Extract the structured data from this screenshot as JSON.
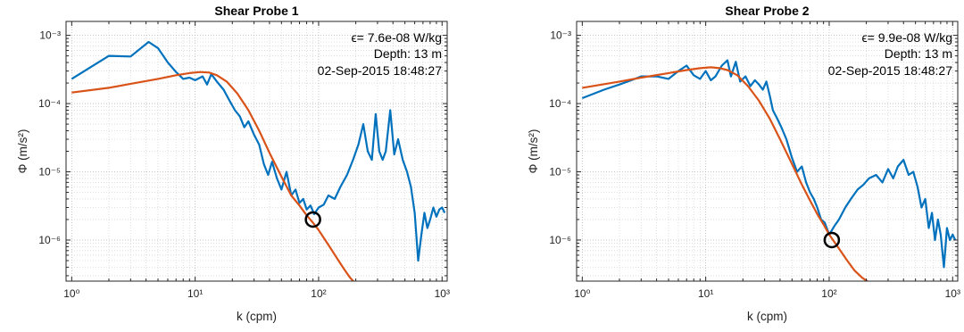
{
  "chart_data": [
    {
      "type": "line",
      "title": "Shear Probe 1",
      "xlabel": "k (cpm)",
      "ylabel": "Φ (m/s²)",
      "xscale": "log",
      "yscale": "log",
      "xlim": [
        0.9,
        1100
      ],
      "ylim": [
        2.5e-07,
        0.0016
      ],
      "grid": "on (major and minor, dotted)",
      "xticks": [
        "10⁰",
        "10¹",
        "10²",
        "10³"
      ],
      "yticks": [
        "10⁻⁶",
        "10⁻⁵",
        "10⁻⁴",
        "10⁻³"
      ],
      "annotations": [
        "ϵ= 7.6e-08 W/kg",
        "Depth: 13 m",
        "02-Sep-2015 18:48:27"
      ],
      "cutoff_marker": {
        "x": 90,
        "y": 2e-06
      },
      "series": [
        {
          "color": "#0072BD",
          "points": [
            [
              1.0,
              0.00023
            ],
            [
              2.0,
              0.0005
            ],
            [
              3.0,
              0.00049
            ],
            [
              4.2,
              0.0008
            ],
            [
              5.0,
              0.00065
            ],
            [
              6.0,
              0.0004
            ],
            [
              7.0,
              0.00029
            ],
            [
              8.0,
              0.00023
            ],
            [
              9.0,
              0.00024
            ],
            [
              10.0,
              0.00022
            ],
            [
              11.5,
              0.00025
            ],
            [
              12.5,
              0.00019
            ],
            [
              13.5,
              0.00027
            ],
            [
              15.0,
              0.00021
            ],
            [
              17.0,
              0.00016
            ],
            [
              19.0,
              0.00011
            ],
            [
              21.0,
              8e-05
            ],
            [
              23.0,
              6.5e-05
            ],
            [
              25.0,
              4.5e-05
            ],
            [
              27.0,
              5.5e-05
            ],
            [
              30.0,
              3.5e-05
            ],
            [
              33.0,
              2.5e-05
            ],
            [
              36.0,
              1.3e-05
            ],
            [
              39.0,
              9e-06
            ],
            [
              42.0,
              1.4e-05
            ],
            [
              46.0,
              8e-06
            ],
            [
              50.0,
              5.5e-06
            ],
            [
              55.0,
              1e-05
            ],
            [
              60.0,
              4.5e-06
            ],
            [
              65.0,
              5.5e-06
            ],
            [
              70.0,
              3.5e-06
            ],
            [
              75.0,
              4e-06
            ],
            [
              80.0,
              2.8e-06
            ],
            [
              86.0,
              3.2e-06
            ],
            [
              92.0,
              2.4e-06
            ],
            [
              100.0,
              3e-06
            ],
            [
              110.0,
              3.3e-06
            ],
            [
              120.0,
              4.5e-06
            ],
            [
              135.0,
              4e-06
            ],
            [
              150.0,
              6e-06
            ],
            [
              170.0,
              9e-06
            ],
            [
              190.0,
              1.5e-05
            ],
            [
              210.0,
              2.5e-05
            ],
            [
              230.0,
              5e-05
            ],
            [
              250.0,
              2e-05
            ],
            [
              270.0,
              1.5e-05
            ],
            [
              290.0,
              7e-05
            ],
            [
              310.0,
              2e-05
            ],
            [
              330.0,
              1.5e-05
            ],
            [
              350.0,
              2e-05
            ],
            [
              380.0,
              8e-05
            ],
            [
              410.0,
              1.8e-05
            ],
            [
              440.0,
              3e-05
            ],
            [
              480.0,
              1.5e-05
            ],
            [
              520.0,
              1e-05
            ],
            [
              560.0,
              6e-06
            ],
            [
              600.0,
              2.5e-06
            ],
            [
              640.0,
              5e-07
            ],
            [
              680.0,
              1.2e-06
            ],
            [
              720.0,
              2.5e-06
            ],
            [
              760.0,
              1.5e-06
            ],
            [
              800.0,
              2e-06
            ],
            [
              850.0,
              3e-06
            ],
            [
              900.0,
              2.2e-06
            ],
            [
              950.0,
              2.8e-06
            ],
            [
              1000.0,
              3e-06
            ],
            [
              1050.0,
              2.5e-06
            ]
          ]
        },
        {
          "color": "#D95319",
          "points": [
            [
              1.0,
              0.000145
            ],
            [
              2.0,
              0.00017
            ],
            [
              3.0,
              0.000195
            ],
            [
              5.0,
              0.00023
            ],
            [
              7.0,
              0.00026
            ],
            [
              9.0,
              0.00028
            ],
            [
              11.0,
              0.00029
            ],
            [
              13.0,
              0.000285
            ],
            [
              15.0,
              0.00026
            ],
            [
              18.0,
              0.00021
            ],
            [
              22.0,
              0.00014
            ],
            [
              27.0,
              8e-05
            ],
            [
              33.0,
              4e-05
            ],
            [
              40.0,
              1.9e-05
            ],
            [
              50.0,
              8.5e-06
            ],
            [
              60.0,
              4.5e-06
            ],
            [
              70.0,
              3.2e-06
            ],
            [
              80.0,
              2.3e-06
            ],
            [
              90.0,
              1.8e-06
            ],
            [
              100.0,
              1.4e-06
            ],
            [
              120.0,
              8.5e-07
            ],
            [
              140.0,
              5.5e-07
            ],
            [
              160.0,
              3.8e-07
            ],
            [
              180.0,
              2.8e-07
            ],
            [
              195.0,
              2.4e-07
            ]
          ]
        }
      ]
    },
    {
      "type": "line",
      "title": "Shear Probe 2",
      "xlabel": "k (cpm)",
      "ylabel": "Φ (m/s²)",
      "xscale": "log",
      "yscale": "log",
      "xlim": [
        0.9,
        1100
      ],
      "ylim": [
        2.5e-07,
        0.0016
      ],
      "grid": "on (major and minor, dotted)",
      "xticks": [
        "10⁰",
        "10¹",
        "10²",
        "10³"
      ],
      "yticks": [
        "10⁻⁶",
        "10⁻⁵",
        "10⁻⁴",
        "10⁻³"
      ],
      "annotations": [
        "ϵ= 9.9e-08 W/kg",
        "Depth: 13 m",
        "02-Sep-2015 18:48:27"
      ],
      "cutoff_marker": {
        "x": 105,
        "y": 1e-06
      },
      "series": [
        {
          "color": "#0072BD",
          "points": [
            [
              1.0,
              0.00012
            ],
            [
              1.5,
              0.00016
            ],
            [
              2.0,
              0.00019
            ],
            [
              2.5,
              0.00022
            ],
            [
              3.0,
              0.00025
            ],
            [
              4.0,
              0.00025
            ],
            [
              5.0,
              0.00023
            ],
            [
              6.0,
              0.0003
            ],
            [
              7.0,
              0.00036
            ],
            [
              8.0,
              0.00026
            ],
            [
              9.0,
              0.00023
            ],
            [
              10.0,
              0.0003
            ],
            [
              11.0,
              0.00022
            ],
            [
              12.0,
              0.00025
            ],
            [
              13.5,
              0.00036
            ],
            [
              15.0,
              0.00043
            ],
            [
              16.0,
              0.00025
            ],
            [
              17.5,
              0.00041
            ],
            [
              19.0,
              0.00021
            ],
            [
              21.0,
              0.00025
            ],
            [
              23.0,
              0.00018
            ],
            [
              25.0,
              0.00022
            ],
            [
              27.0,
              0.00019
            ],
            [
              29.0,
              0.00016
            ],
            [
              31.0,
              0.00021
            ],
            [
              33.0,
              0.00013
            ],
            [
              35.0,
              8e-05
            ],
            [
              38.0,
              6e-05
            ],
            [
              41.0,
              4.5e-05
            ],
            [
              45.0,
              3e-05
            ],
            [
              50.0,
              1.6e-05
            ],
            [
              55.0,
              1e-05
            ],
            [
              60.0,
              1.2e-05
            ],
            [
              65.0,
              7e-06
            ],
            [
              70.0,
              5e-06
            ],
            [
              75.0,
              4e-06
            ],
            [
              80.0,
              3e-06
            ],
            [
              86.0,
              2e-06
            ],
            [
              92.0,
              1.8e-06
            ],
            [
              100.0,
              1.2e-06
            ],
            [
              110.0,
              1.6e-06
            ],
            [
              120.0,
              2e-06
            ],
            [
              135.0,
              3e-06
            ],
            [
              150.0,
              4e-06
            ],
            [
              170.0,
              5.5e-06
            ],
            [
              190.0,
              6.5e-06
            ],
            [
              210.0,
              8e-06
            ],
            [
              240.0,
              9e-06
            ],
            [
              270.0,
              7e-06
            ],
            [
              300.0,
              1.1e-05
            ],
            [
              330.0,
              8e-06
            ],
            [
              360.0,
              1.2e-05
            ],
            [
              400.0,
              1.5e-05
            ],
            [
              440.0,
              9e-06
            ],
            [
              480.0,
              1e-05
            ],
            [
              520.0,
              6e-06
            ],
            [
              560.0,
              3e-06
            ],
            [
              600.0,
              4e-06
            ],
            [
              640.0,
              1.5e-06
            ],
            [
              680.0,
              2.5e-06
            ],
            [
              720.0,
              1e-06
            ],
            [
              760.0,
              2e-06
            ],
            [
              800.0,
              1.2e-06
            ],
            [
              850.0,
              4e-07
            ],
            [
              900.0,
              1.5e-06
            ],
            [
              950.0,
              1e-06
            ],
            [
              1000.0,
              1.2e-06
            ],
            [
              1050.0,
              1e-06
            ]
          ]
        },
        {
          "color": "#D95319",
          "points": [
            [
              1.0,
              0.00017
            ],
            [
              2.0,
              0.00021
            ],
            [
              3.0,
              0.00024
            ],
            [
              5.0,
              0.00028
            ],
            [
              7.0,
              0.00031
            ],
            [
              9.0,
              0.00033
            ],
            [
              11.0,
              0.00034
            ],
            [
              13.0,
              0.00033
            ],
            [
              15.0,
              0.00031
            ],
            [
              18.0,
              0.00026
            ],
            [
              22.0,
              0.00018
            ],
            [
              27.0,
              0.00011
            ],
            [
              33.0,
              6e-05
            ],
            [
              40.0,
              3e-05
            ],
            [
              50.0,
              1.3e-05
            ],
            [
              60.0,
              6.5e-06
            ],
            [
              70.0,
              3.8e-06
            ],
            [
              80.0,
              2.4e-06
            ],
            [
              90.0,
              1.7e-06
            ],
            [
              100.0,
              1.2e-06
            ],
            [
              120.0,
              7.5e-07
            ],
            [
              140.0,
              5e-07
            ],
            [
              160.0,
              3.6e-07
            ],
            [
              185.0,
              2.8e-07
            ],
            [
              210.0,
              2.4e-07
            ]
          ]
        }
      ]
    }
  ]
}
